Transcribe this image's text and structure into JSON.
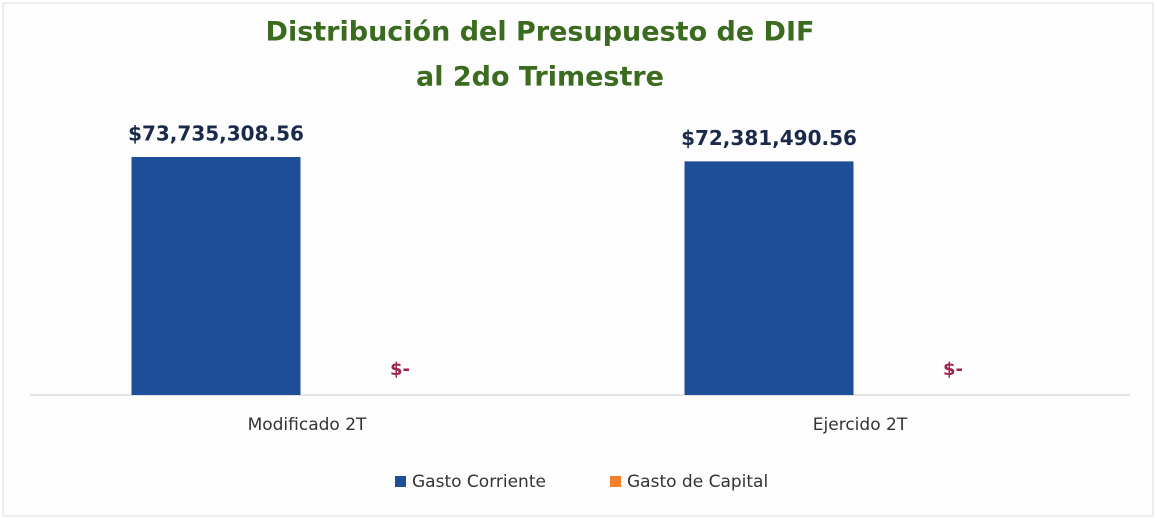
{
  "chart_data": {
    "type": "bar",
    "title": [
      "Distribución del Presupuesto de DIF",
      "al 2do Trimestre"
    ],
    "categories": [
      "Modificado 2T",
      "Ejercido 2T"
    ],
    "series": [
      {
        "name": "Gasto Corriente",
        "color": "#1f4e99",
        "values": [
          73735308.56,
          72381490.56
        ],
        "value_labels": [
          "$73,735,308.56",
          "$72,381,490.56"
        ]
      },
      {
        "name": "Gasto de Capital",
        "color": "#f4812a",
        "values": [
          0,
          0
        ],
        "value_labels": [
          "$-",
          "$-"
        ]
      }
    ]
  }
}
